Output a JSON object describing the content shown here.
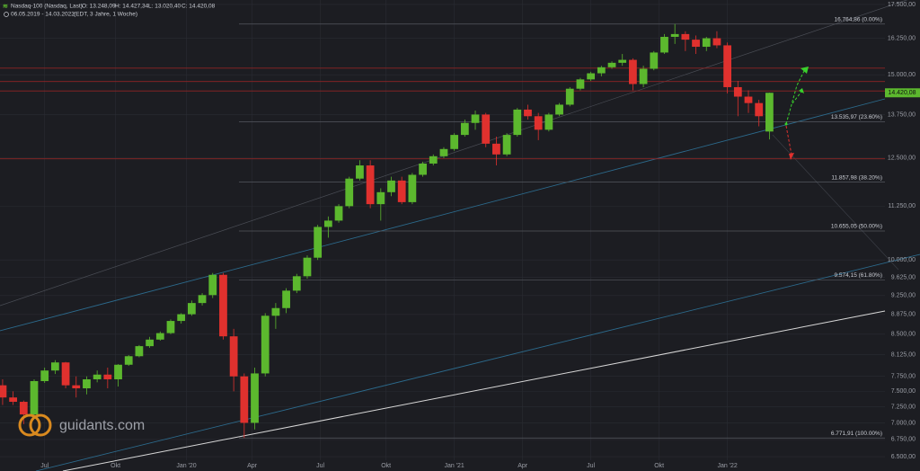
{
  "chart_data": {
    "type": "candlestick",
    "title": "Nasdaq-100 (Nasdaq, Last)",
    "ohlc_labels": [
      "O: 13.248,09",
      "H: 14.427,34",
      "L: 13.020,40",
      "C: 14.420,08"
    ],
    "subtitle": "06.05.2019 - 14.03.2022",
    "subtitle_note": "(EDT, 3 Jahre, 1 Woche)",
    "watermark": "guidants.com",
    "log_scale": true,
    "grid": true,
    "up_color": "#5cb82e",
    "down_color": "#e0312e",
    "xlim": [
      -0.5,
      168
    ],
    "ylim": [
      6450,
      17670
    ],
    "xticks": [
      {
        "value": 8,
        "label": "Jul"
      },
      {
        "value": 21.5,
        "label": "Okt"
      },
      {
        "value": 35,
        "label": "Jan '20"
      },
      {
        "value": 47.5,
        "label": "Apr"
      },
      {
        "value": 60.5,
        "label": "Jul"
      },
      {
        "value": 73,
        "label": "Okt"
      },
      {
        "value": 86,
        "label": "Jan '21"
      },
      {
        "value": 99,
        "label": "Apr"
      },
      {
        "value": 112,
        "label": "Jul"
      },
      {
        "value": 125,
        "label": "Okt"
      },
      {
        "value": 138,
        "label": "Jan '22"
      }
    ],
    "yticks": [
      {
        "value": 17500,
        "label": "17.500,00"
      },
      {
        "value": 16250,
        "label": "16.250,00"
      },
      {
        "value": 15000,
        "label": "15.000,00"
      },
      {
        "value": 13750,
        "label": "13.750,00"
      },
      {
        "value": 12500,
        "label": "12.500,00"
      },
      {
        "value": 11250,
        "label": "11.250,00"
      },
      {
        "value": 10000,
        "label": "10.000,00"
      },
      {
        "value": 9625,
        "label": "9.625,00"
      },
      {
        "value": 9250,
        "label": "9.250,00"
      },
      {
        "value": 8875,
        "label": "8.875,00"
      },
      {
        "value": 8500,
        "label": "8.500,00"
      },
      {
        "value": 8125,
        "label": "8.125,00"
      },
      {
        "value": 7750,
        "label": "7.750,00"
      },
      {
        "value": 7500,
        "label": "7.500,00"
      },
      {
        "value": 7250,
        "label": "7.250,00"
      },
      {
        "value": 7000,
        "label": "7.000,00"
      },
      {
        "value": 6750,
        "label": "6.750,00"
      },
      {
        "value": 6500,
        "label": "6.500,00"
      }
    ],
    "fib_levels": [
      {
        "value": 16764.86,
        "label": "16.764,86 (0.00%)"
      },
      {
        "value": 13535.97,
        "label": "13.535,97 (23.60%)"
      },
      {
        "value": 11857.98,
        "label": "11.857,98 (38.20%)"
      },
      {
        "value": 10655.05,
        "label": "10.655,05 (50.00%)"
      },
      {
        "value": 9574.15,
        "label": "9.574,15 (61.80%)"
      },
      {
        "value": 6771.91,
        "label": "6.771,91 (100.00%)"
      }
    ],
    "resistance_lines": [
      15220,
      14780,
      14480,
      12480
    ],
    "last_price": {
      "value": 14420.08,
      "label": "14.420,08"
    },
    "x": [
      0,
      2,
      4,
      6,
      8,
      10,
      12,
      14,
      16,
      18,
      20,
      22,
      24,
      26,
      28,
      30,
      32,
      34,
      36,
      38,
      40,
      42,
      44,
      46,
      48,
      50,
      52,
      54,
      56,
      58,
      60,
      62,
      64,
      66,
      68,
      70,
      72,
      74,
      76,
      78,
      80,
      82,
      84,
      86,
      88,
      90,
      92,
      94,
      96,
      98,
      100,
      102,
      104,
      106,
      108,
      110,
      112,
      114,
      116,
      118,
      120,
      122,
      124,
      126,
      128,
      130,
      132,
      134,
      136,
      138,
      140,
      142,
      144,
      146
    ],
    "open": [
      7600,
      7400,
      7330,
      7130,
      7670,
      7850,
      7990,
      7600,
      7550,
      7700,
      7780,
      7700,
      7950,
      8100,
      8280,
      8400,
      8520,
      8750,
      8880,
      9100,
      9260,
      9680,
      8460,
      7750,
      7000,
      7800,
      8850,
      9000,
      9350,
      9650,
      10050,
      10750,
      10900,
      11250,
      11950,
      12300,
      11300,
      11600,
      11900,
      11350,
      12050,
      12350,
      12550,
      12750,
      13150,
      13500,
      13750,
      12900,
      12600,
      13150,
      13900,
      13700,
      13300,
      13750,
      14050,
      14550,
      14850,
      15050,
      15250,
      15400,
      15500,
      14700,
      15200,
      15750,
      16300,
      16400,
      16200,
      15950,
      16250,
      16000,
      14600,
      14300,
      14100,
      13248.09
    ],
    "high": [
      7700,
      7500,
      7350,
      7700,
      7900,
      8030,
      8000,
      7750,
      7750,
      7850,
      7900,
      7960,
      8120,
      8300,
      8450,
      8550,
      8780,
      8900,
      9150,
      9300,
      9720,
      9720,
      8600,
      7800,
      7900,
      8900,
      9100,
      9400,
      9700,
      10100,
      10800,
      11000,
      11300,
      12000,
      12440,
      12440,
      11700,
      12000,
      12000,
      12100,
      12400,
      12600,
      12800,
      13200,
      13600,
      13870,
      13800,
      13100,
      13200,
      13950,
      14050,
      13800,
      13800,
      14100,
      14600,
      14900,
      15100,
      15300,
      15450,
      15700,
      15550,
      15300,
      15800,
      16400,
      16764.86,
      16500,
      16350,
      16300,
      16500,
      16100,
      14800,
      14500,
      14200,
      14427.34
    ],
    "low": [
      7280,
      7280,
      6980,
      7100,
      7640,
      7790,
      7550,
      7400,
      7450,
      7650,
      7550,
      7580,
      7930,
      8080,
      8250,
      8380,
      8500,
      8700,
      8850,
      9050,
      9200,
      8400,
      7500,
      6771.91,
      6900,
      7750,
      8600,
      8900,
      9300,
      9600,
      10000,
      10500,
      10850,
      11200,
      11900,
      11200,
      10900,
      11500,
      11300,
      11300,
      12000,
      12300,
      12500,
      12700,
      13100,
      13300,
      12800,
      12300,
      12550,
      13100,
      13600,
      13000,
      13250,
      13700,
      14000,
      14500,
      14800,
      14950,
      15200,
      15300,
      14500,
      14600,
      15150,
      15700,
      16050,
      15800,
      15700,
      15800,
      15900,
      14400,
      13700,
      13800,
      13400,
      13020.4
    ],
    "close": [
      7400,
      7330,
      7130,
      7670,
      7850,
      7990,
      7600,
      7550,
      7700,
      7780,
      7700,
      7950,
      8100,
      8280,
      8400,
      8520,
      8750,
      8880,
      9100,
      9260,
      9680,
      8460,
      7750,
      7000,
      7800,
      8850,
      9000,
      9350,
      9650,
      10050,
      10750,
      10900,
      11250,
      11950,
      12300,
      11300,
      11600,
      11900,
      11350,
      12050,
      12350,
      12550,
      12750,
      13150,
      13500,
      13750,
      12900,
      12600,
      13150,
      13900,
      13700,
      13300,
      13750,
      14050,
      14550,
      14850,
      15050,
      15250,
      15400,
      15500,
      14700,
      15200,
      15750,
      16300,
      16400,
      16200,
      15950,
      16250,
      16000,
      14600,
      14300,
      14100,
      13700,
      14420.08
    ]
  }
}
